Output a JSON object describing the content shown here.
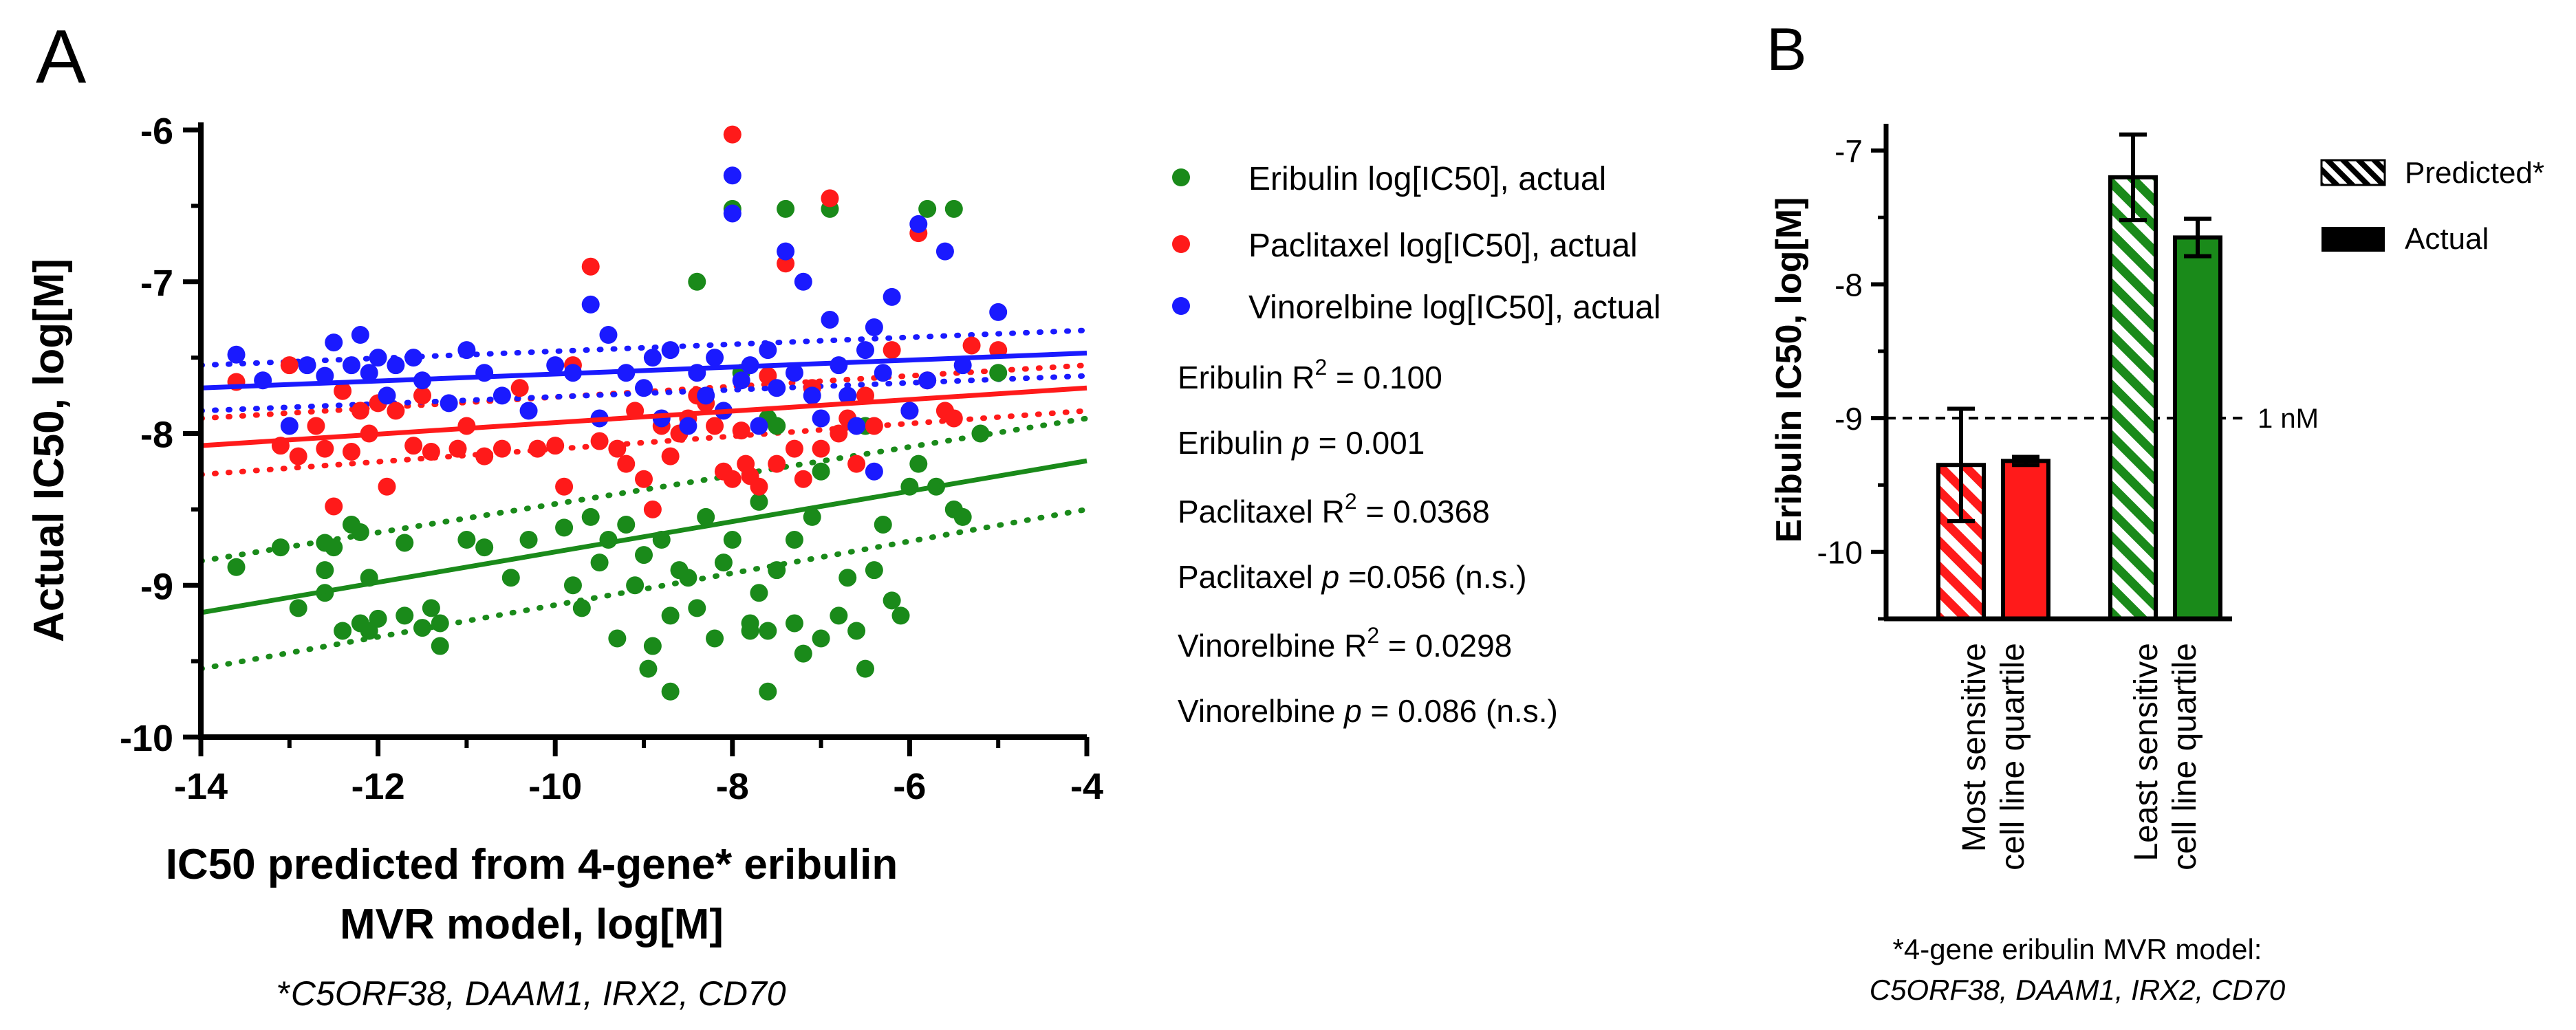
{
  "panel_a": {
    "letter": "A",
    "stats": [
      {
        "drug": "Eribulin",
        "kind": "r2",
        "sep": "  ",
        "value": "= 0.100",
        "note": ""
      },
      {
        "drug": "Eribulin",
        "kind": "p",
        "sep": " ",
        "value": "= 0.001",
        "note": ""
      },
      {
        "drug": "Paclitaxel",
        "kind": "r2",
        "sep": " ",
        "value": "= 0.0368",
        "note": ""
      },
      {
        "drug": "Paclitaxel",
        "kind": "p",
        "sep": " ",
        "value": "=0.056",
        "note": "(n.s.)"
      },
      {
        "drug": "Vinorelbine",
        "kind": "r2",
        "sep": "  ",
        "value": "= 0.0298",
        "note": ""
      },
      {
        "drug": "Vinorelbine",
        "kind": "p",
        "sep": " ",
        "value": "= 0.086",
        "note": "(n.s.)"
      }
    ],
    "footnote_star": "*",
    "footnote_genes": "C5ORF38, DAAM1, IRX2, CD70",
    "colors": {
      "eribulin": "#1a8a1a",
      "paclitaxel": "#ff1a1a",
      "vinorelbine": "#1a1aff"
    }
  },
  "panel_b": {
    "letter": "B",
    "reference_label": "1 nM",
    "footnote_line1": "*4-gene eribulin MVR model:",
    "footnote_line2": "C5ORF38, DAAM1, IRX2, CD70"
  },
  "chart_data": [
    {
      "type": "scatter",
      "title": "",
      "xlabel_line1": "IC50 predicted from 4-gene* eribulin",
      "xlabel_line2": "MVR model, log[M]",
      "ylabel": "Actual IC50, log[M]",
      "xlim": [
        -14,
        -4
      ],
      "ylim": [
        -10,
        -5.95
      ],
      "xticks": [
        -14,
        -12,
        -10,
        -8,
        -6,
        -4
      ],
      "yticks": [
        -10,
        -9,
        -8,
        -7,
        -6
      ],
      "legend_position": "right",
      "series": [
        {
          "name": "Eribulin log[IC50], actual",
          "key": "eribulin",
          "regression": {
            "x": [
              -14,
              -4
            ],
            "y": [
              -9.18,
              -8.18
            ]
          },
          "ci_upper": {
            "x": [
              -14,
              -4
            ],
            "y": [
              -8.84,
              -7.9
            ]
          },
          "ci_lower": {
            "x": [
              -14,
              -4
            ],
            "y": [
              -9.55,
              -8.5
            ]
          },
          "points": [
            [
              -13.6,
              -8.88
            ],
            [
              -13.1,
              -8.75
            ],
            [
              -12.9,
              -9.15
            ],
            [
              -12.6,
              -9.05
            ],
            [
              -12.6,
              -8.9
            ],
            [
              -12.6,
              -8.72
            ],
            [
              -12.5,
              -8.75
            ],
            [
              -12.4,
              -9.3
            ],
            [
              -12.3,
              -8.6
            ],
            [
              -12.2,
              -8.65
            ],
            [
              -12.2,
              -9.25
            ],
            [
              -12.1,
              -9.3
            ],
            [
              -12.1,
              -8.95
            ],
            [
              -12.0,
              -9.22
            ],
            [
              -11.7,
              -9.2
            ],
            [
              -11.7,
              -8.72
            ],
            [
              -11.5,
              -9.28
            ],
            [
              -11.4,
              -9.15
            ],
            [
              -11.3,
              -9.4
            ],
            [
              -11.3,
              -9.25
            ],
            [
              -11.0,
              -8.7
            ],
            [
              -10.8,
              -8.75
            ],
            [
              -10.5,
              -8.95
            ],
            [
              -10.3,
              -8.7
            ],
            [
              -9.9,
              -8.62
            ],
            [
              -9.8,
              -9.0
            ],
            [
              -9.7,
              -9.15
            ],
            [
              -9.6,
              -8.55
            ],
            [
              -9.5,
              -8.85
            ],
            [
              -9.4,
              -8.7
            ],
            [
              -9.3,
              -9.35
            ],
            [
              -9.2,
              -8.6
            ],
            [
              -9.1,
              -9.0
            ],
            [
              -9.0,
              -8.8
            ],
            [
              -8.95,
              -9.55
            ],
            [
              -8.9,
              -9.4
            ],
            [
              -8.8,
              -8.7
            ],
            [
              -8.7,
              -9.2
            ],
            [
              -8.7,
              -9.7
            ],
            [
              -8.6,
              -8.9
            ],
            [
              -8.5,
              -8.95
            ],
            [
              -8.4,
              -9.15
            ],
            [
              -8.3,
              -8.55
            ],
            [
              -8.2,
              -9.35
            ],
            [
              -8.1,
              -8.85
            ],
            [
              -8.0,
              -6.52
            ],
            [
              -8.0,
              -8.7
            ],
            [
              -7.9,
              -7.6
            ],
            [
              -7.8,
              -9.25
            ],
            [
              -7.8,
              -9.3
            ],
            [
              -7.7,
              -8.45
            ],
            [
              -7.7,
              -9.05
            ],
            [
              -7.6,
              -9.3
            ],
            [
              -7.6,
              -9.7
            ],
            [
              -7.5,
              -8.9
            ],
            [
              -7.5,
              -7.95
            ],
            [
              -7.4,
              -6.52
            ],
            [
              -7.3,
              -9.25
            ],
            [
              -7.3,
              -8.7
            ],
            [
              -7.2,
              -9.45
            ],
            [
              -7.1,
              -8.55
            ],
            [
              -7.0,
              -9.35
            ],
            [
              -7.0,
              -8.25
            ],
            [
              -6.9,
              -6.52
            ],
            [
              -6.8,
              -9.2
            ],
            [
              -6.7,
              -8.95
            ],
            [
              -6.6,
              -9.3
            ],
            [
              -6.5,
              -9.55
            ],
            [
              -6.4,
              -8.9
            ],
            [
              -6.3,
              -8.6
            ],
            [
              -6.2,
              -9.1
            ],
            [
              -6.1,
              -9.2
            ],
            [
              -6.0,
              -8.35
            ],
            [
              -5.9,
              -8.2
            ],
            [
              -5.8,
              -6.52
            ],
            [
              -5.7,
              -8.35
            ],
            [
              -5.5,
              -8.5
            ],
            [
              -5.5,
              -6.52
            ],
            [
              -5.4,
              -8.55
            ],
            [
              -5.2,
              -8.0
            ],
            [
              -5.0,
              -7.6
            ],
            [
              -8.4,
              -7.0
            ],
            [
              -7.6,
              -7.9
            ],
            [
              -6.5,
              -7.95
            ]
          ]
        },
        {
          "name": "Paclitaxel log[IC50], actual",
          "key": "paclitaxel",
          "regression": {
            "x": [
              -14,
              -4
            ],
            "y": [
              -8.08,
              -7.7
            ]
          },
          "ci_upper": {
            "x": [
              -14,
              -4
            ],
            "y": [
              -7.9,
              -7.55
            ]
          },
          "ci_lower": {
            "x": [
              -14,
              -4
            ],
            "y": [
              -8.27,
              -7.85
            ]
          },
          "points": [
            [
              -13.6,
              -7.66
            ],
            [
              -13.1,
              -8.08
            ],
            [
              -13.0,
              -7.55
            ],
            [
              -12.9,
              -8.15
            ],
            [
              -12.7,
              -7.95
            ],
            [
              -12.6,
              -8.1
            ],
            [
              -12.5,
              -8.48
            ],
            [
              -12.4,
              -7.72
            ],
            [
              -12.3,
              -8.12
            ],
            [
              -12.2,
              -7.85
            ],
            [
              -12.1,
              -8.0
            ],
            [
              -12.0,
              -7.8
            ],
            [
              -11.9,
              -8.35
            ],
            [
              -11.8,
              -7.85
            ],
            [
              -11.6,
              -8.08
            ],
            [
              -11.5,
              -7.75
            ],
            [
              -11.4,
              -8.12
            ],
            [
              -11.1,
              -8.1
            ],
            [
              -11.0,
              -7.95
            ],
            [
              -10.8,
              -8.15
            ],
            [
              -10.6,
              -8.1
            ],
            [
              -10.4,
              -7.7
            ],
            [
              -10.2,
              -8.1
            ],
            [
              -10.0,
              -8.08
            ],
            [
              -9.9,
              -8.35
            ],
            [
              -9.8,
              -7.55
            ],
            [
              -9.6,
              -6.9
            ],
            [
              -9.5,
              -8.05
            ],
            [
              -9.3,
              -8.1
            ],
            [
              -9.2,
              -8.2
            ],
            [
              -9.1,
              -7.85
            ],
            [
              -9.0,
              -8.3
            ],
            [
              -8.9,
              -8.5
            ],
            [
              -8.8,
              -7.95
            ],
            [
              -8.7,
              -8.15
            ],
            [
              -8.6,
              -8.0
            ],
            [
              -8.5,
              -7.9
            ],
            [
              -8.4,
              -7.75
            ],
            [
              -8.3,
              -7.8
            ],
            [
              -8.2,
              -7.95
            ],
            [
              -8.1,
              -8.25
            ],
            [
              -8.0,
              -8.3
            ],
            [
              -8.0,
              -6.03
            ],
            [
              -7.9,
              -7.98
            ],
            [
              -7.85,
              -8.2
            ],
            [
              -7.8,
              -8.28
            ],
            [
              -7.7,
              -8.35
            ],
            [
              -7.6,
              -7.62
            ],
            [
              -7.5,
              -8.2
            ],
            [
              -7.4,
              -6.88
            ],
            [
              -7.3,
              -8.1
            ],
            [
              -7.2,
              -8.3
            ],
            [
              -7.1,
              -7.7
            ],
            [
              -7.0,
              -8.1
            ],
            [
              -6.9,
              -6.45
            ],
            [
              -6.8,
              -8.0
            ],
            [
              -6.7,
              -7.9
            ],
            [
              -6.6,
              -8.2
            ],
            [
              -6.5,
              -7.75
            ],
            [
              -6.4,
              -7.95
            ],
            [
              -6.2,
              -7.45
            ],
            [
              -6.0,
              -7.85
            ],
            [
              -5.9,
              -6.68
            ],
            [
              -5.8,
              -7.65
            ],
            [
              -5.6,
              -7.85
            ],
            [
              -5.5,
              -7.9
            ],
            [
              -5.3,
              -7.42
            ],
            [
              -5.0,
              -7.45
            ]
          ]
        },
        {
          "name": "Vinorelbine log[IC50], actual",
          "key": "vinorelbine",
          "regression": {
            "x": [
              -14,
              -4
            ],
            "y": [
              -7.7,
              -7.47
            ]
          },
          "ci_upper": {
            "x": [
              -14,
              -4
            ],
            "y": [
              -7.55,
              -7.32
            ]
          },
          "ci_lower": {
            "x": [
              -14,
              -4
            ],
            "y": [
              -7.85,
              -7.62
            ]
          },
          "points": [
            [
              -13.6,
              -7.48
            ],
            [
              -13.3,
              -7.65
            ],
            [
              -13.0,
              -7.95
            ],
            [
              -12.8,
              -7.55
            ],
            [
              -12.6,
              -7.62
            ],
            [
              -12.5,
              -7.4
            ],
            [
              -12.3,
              -7.55
            ],
            [
              -12.2,
              -7.35
            ],
            [
              -12.1,
              -7.6
            ],
            [
              -12.0,
              -7.5
            ],
            [
              -11.9,
              -7.75
            ],
            [
              -11.8,
              -7.55
            ],
            [
              -11.6,
              -7.5
            ],
            [
              -11.5,
              -7.65
            ],
            [
              -11.2,
              -7.8
            ],
            [
              -11.0,
              -7.45
            ],
            [
              -10.8,
              -7.6
            ],
            [
              -10.6,
              -7.75
            ],
            [
              -10.3,
              -7.85
            ],
            [
              -10.0,
              -7.55
            ],
            [
              -9.8,
              -7.6
            ],
            [
              -9.6,
              -7.15
            ],
            [
              -9.5,
              -7.9
            ],
            [
              -9.4,
              -7.35
            ],
            [
              -9.2,
              -7.6
            ],
            [
              -9.0,
              -7.7
            ],
            [
              -8.9,
              -7.5
            ],
            [
              -8.8,
              -7.9
            ],
            [
              -8.7,
              -7.45
            ],
            [
              -8.5,
              -7.95
            ],
            [
              -8.4,
              -7.6
            ],
            [
              -8.3,
              -7.75
            ],
            [
              -8.2,
              -7.5
            ],
            [
              -8.1,
              -7.85
            ],
            [
              -8.0,
              -6.3
            ],
            [
              -8.0,
              -6.55
            ],
            [
              -7.9,
              -7.65
            ],
            [
              -7.8,
              -7.55
            ],
            [
              -7.7,
              -7.95
            ],
            [
              -7.6,
              -7.45
            ],
            [
              -7.5,
              -7.7
            ],
            [
              -7.4,
              -6.8
            ],
            [
              -7.3,
              -7.6
            ],
            [
              -7.2,
              -7.0
            ],
            [
              -7.1,
              -7.75
            ],
            [
              -7.0,
              -7.9
            ],
            [
              -6.9,
              -7.25
            ],
            [
              -6.8,
              -7.55
            ],
            [
              -6.7,
              -7.75
            ],
            [
              -6.6,
              -7.95
            ],
            [
              -6.5,
              -7.45
            ],
            [
              -6.4,
              -7.3
            ],
            [
              -6.3,
              -7.6
            ],
            [
              -6.2,
              -7.1
            ],
            [
              -6.0,
              -7.85
            ],
            [
              -5.9,
              -6.62
            ],
            [
              -5.8,
              -7.65
            ],
            [
              -5.6,
              -6.8
            ],
            [
              -5.4,
              -7.55
            ],
            [
              -5.0,
              -7.2
            ],
            [
              -6.4,
              -8.25
            ]
          ]
        }
      ]
    },
    {
      "type": "bar",
      "title": "",
      "ylabel": "Eribulin IC50, log[M]",
      "ylim": [
        -10.5,
        -6.8
      ],
      "yticks": [
        -10,
        -9,
        -8,
        -7
      ],
      "reference_line": {
        "y": -9.0,
        "label": "1 nM"
      },
      "categories": [
        {
          "line1": "Most sensitive",
          "line2": "cell line quartile"
        },
        {
          "line1": "Least sensitive",
          "line2": "cell line quartile"
        }
      ],
      "legend_position": "top-right",
      "series": [
        {
          "name": "Predicted*",
          "pattern": "hatched",
          "values": [
            -9.35,
            -7.2
          ],
          "errors": [
            0.42,
            0.32
          ]
        },
        {
          "name": "Actual",
          "pattern": "solid",
          "values": [
            -9.32,
            -7.65
          ],
          "errors": [
            0.03,
            0.14
          ]
        }
      ],
      "bar_colors": [
        "#ff1a1a",
        "#1a8a1a"
      ]
    }
  ]
}
